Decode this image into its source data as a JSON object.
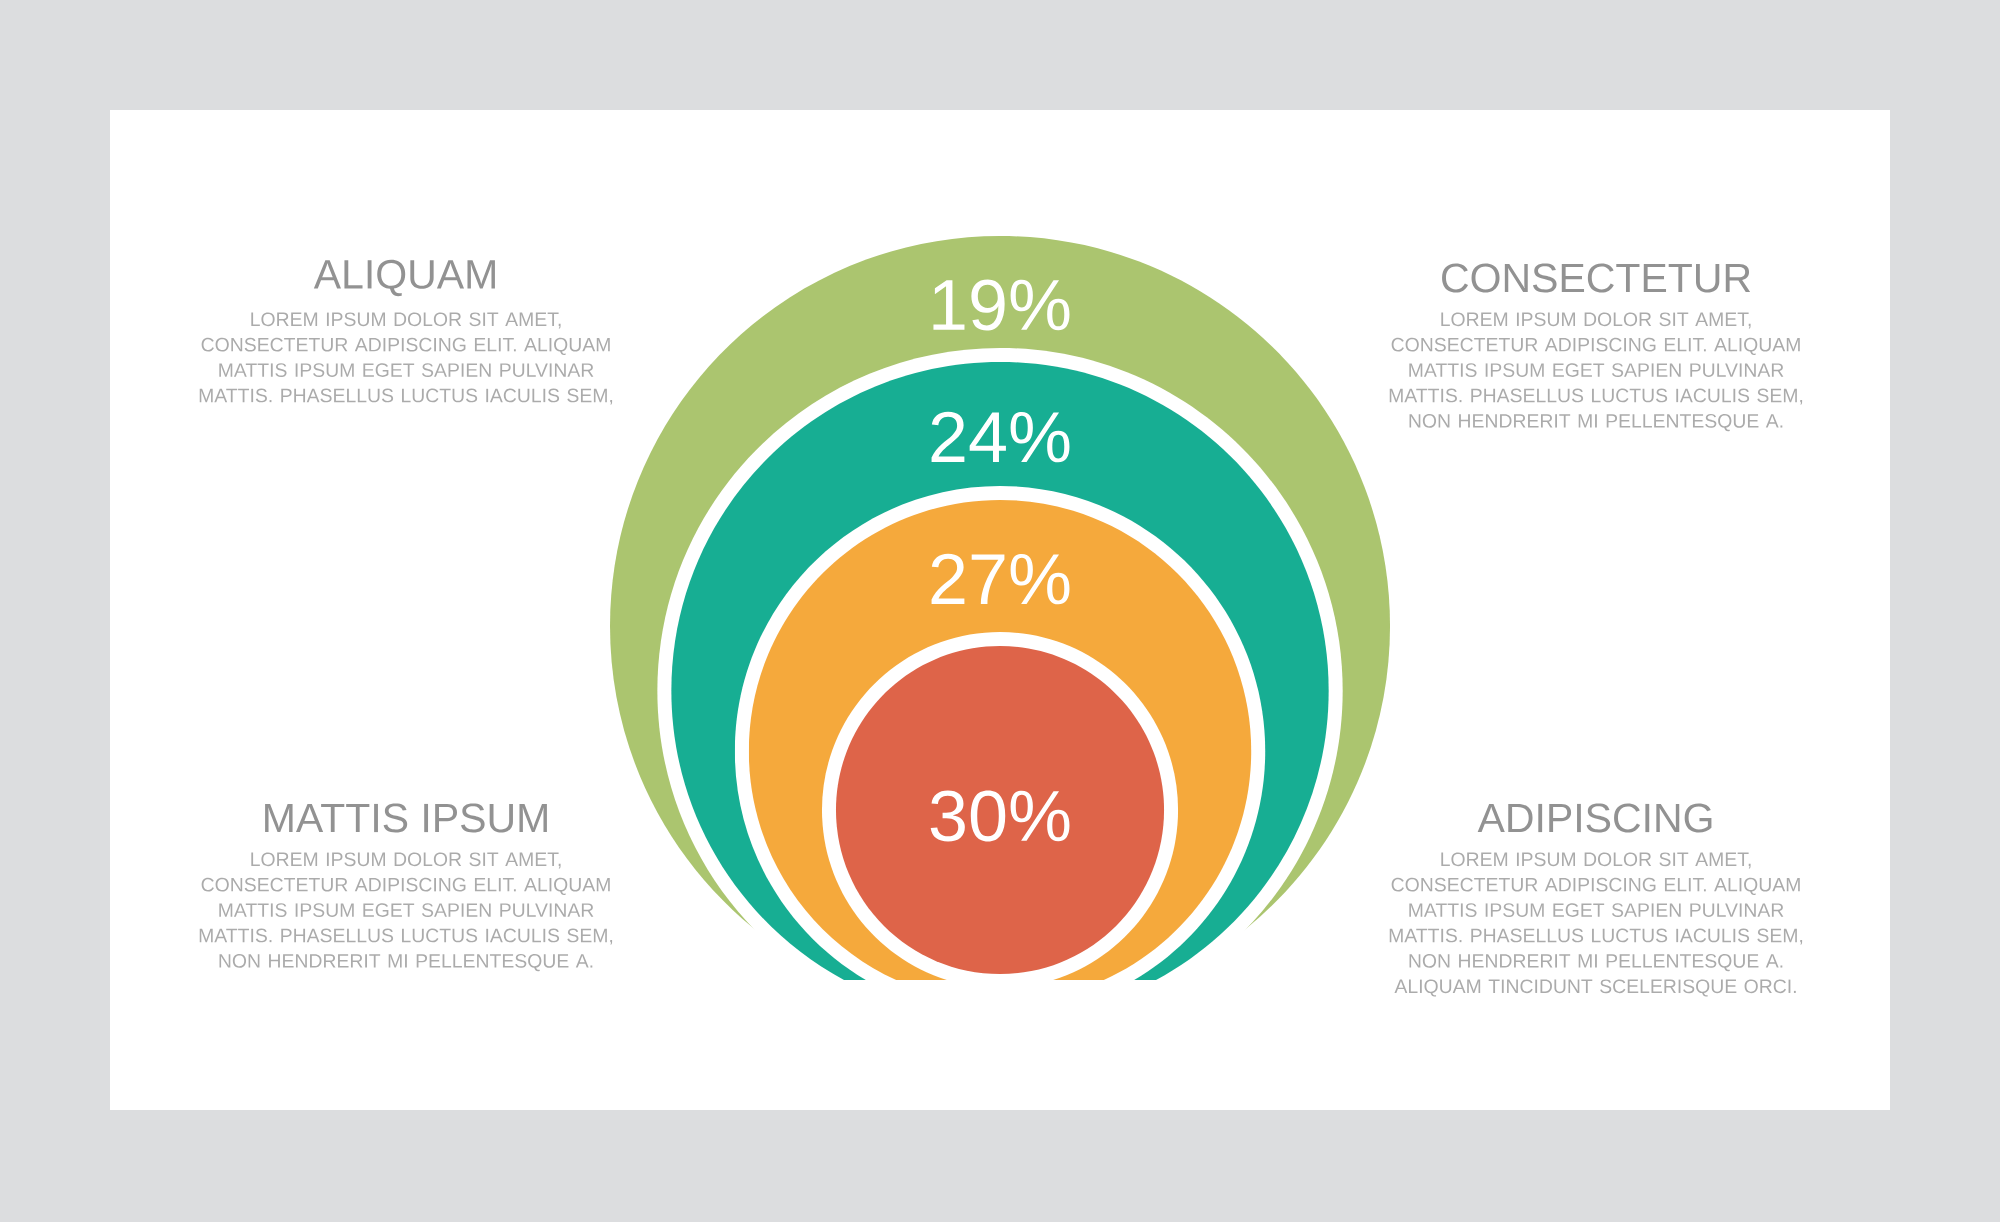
{
  "chart_data": {
    "type": "other",
    "values": [
      19,
      24,
      27,
      30
    ],
    "value_labels": [
      "19%",
      "24%",
      "27%",
      "30%"
    ],
    "colors": [
      "#abc56f",
      "#17ae93",
      "#f5a93c",
      "#de6449"
    ],
    "annotations": [
      "ALIQUAM",
      "LOREM IPSUM DOLOR SIT AMET, CONSECTETUR ADIPISCING ELIT. ALIQUAM MATTIS IPSUM EGET SAPIEN PULVINAR MATTIS. PHASELLUS LUCTUS IACULIS SEM,",
      "CONSECTETUR",
      "LOREM IPSUM DOLOR SIT AMET, CONSECTETUR ADIPISCING ELIT. ALIQUAM MATTIS IPSUM EGET SAPIEN PULVINAR MATTIS. PHASELLUS LUCTUS IACULIS SEM, NON HENDRERIT MI PELLENTESQUE A.",
      "MATTIS IPSUM",
      "LOREM IPSUM DOLOR SIT AMET, CONSECTETUR ADIPISCING ELIT. ALIQUAM MATTIS IPSUM EGET SAPIEN PULVINAR MATTIS. PHASELLUS LUCTUS IACULIS SEM, NON HENDRERIT MI PELLENTESQUE A.",
      "ADIPISCING",
      "LOREM IPSUM DOLOR SIT AMET, CONSECTETUR ADIPISCING ELIT. ALIQUAM MATTIS IPSUM EGET SAPIEN PULVINAR MATTIS. PHASELLUS LUCTUS IACULIS SEM, NON HENDRERIT MI PELLENTESQUE A. ALIQUAM TINCIDUNT SCELERISQUE ORCI."
    ]
  }
}
